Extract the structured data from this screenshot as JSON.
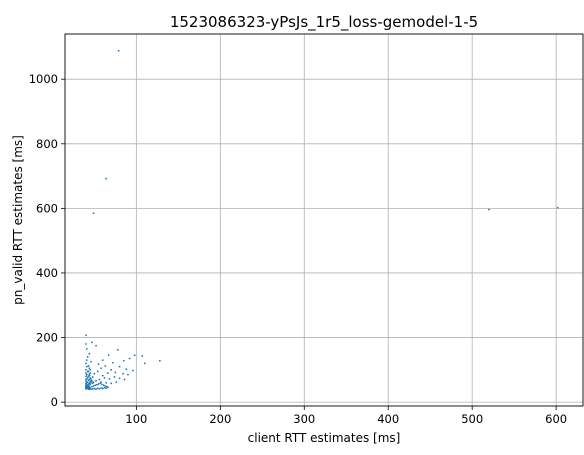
{
  "chart_data": {
    "type": "scatter",
    "title": "1523086323-yPsJs_1r5_loss-gemodel-1-5",
    "xlabel": "client RTT estimates [ms]",
    "ylabel": "pn_valid RTT estimates [ms]",
    "xlim": [
      15,
      632
    ],
    "ylim": [
      -12,
      1140
    ],
    "xticks": [
      100,
      200,
      300,
      400,
      500,
      600
    ],
    "yticks": [
      0,
      200,
      400,
      600,
      800,
      1000
    ],
    "xtick_labels": [
      "100",
      "200",
      "300",
      "400",
      "500",
      "600"
    ],
    "ytick_labels": [
      "0",
      "200",
      "400",
      "600",
      "800",
      "1000"
    ],
    "grid": true,
    "color": "#1f77b4",
    "series": [
      {
        "points": [
          [
            79,
            1088
          ],
          [
            64,
            692
          ],
          [
            49,
            585
          ],
          [
            520,
            596
          ],
          [
            602,
            602
          ],
          [
            40,
            207
          ],
          [
            47,
            185
          ],
          [
            40,
            180
          ],
          [
            52,
            175
          ],
          [
            41,
            165
          ],
          [
            78,
            162
          ],
          [
            67,
            146
          ],
          [
            98,
            145
          ],
          [
            107,
            143
          ],
          [
            128,
            128
          ],
          [
            60,
            130
          ],
          [
            85,
            128
          ],
          [
            110,
            120
          ],
          [
            92,
            135
          ],
          [
            72,
            122
          ],
          [
            55,
            118
          ],
          [
            63,
            112
          ],
          [
            80,
            110
          ],
          [
            88,
            102
          ],
          [
            96,
            98
          ],
          [
            70,
            100
          ],
          [
            58,
            105
          ],
          [
            75,
            92
          ],
          [
            84,
            88
          ],
          [
            90,
            85
          ],
          [
            66,
            90
          ],
          [
            60,
            82
          ],
          [
            54,
            95
          ],
          [
            50,
            88
          ],
          [
            48,
            78
          ],
          [
            62,
            75
          ],
          [
            68,
            72
          ],
          [
            74,
            78
          ],
          [
            80,
            74
          ],
          [
            86,
            70
          ],
          [
            56,
            70
          ],
          [
            52,
            66
          ],
          [
            58,
            62
          ],
          [
            64,
            60
          ],
          [
            70,
            58
          ],
          [
            76,
            62
          ],
          [
            46,
            72
          ],
          [
            44,
            86
          ],
          [
            45,
            100
          ],
          [
            43,
            112
          ],
          [
            46,
            125
          ],
          [
            42,
            140
          ],
          [
            44,
            150
          ],
          [
            41,
            130
          ],
          [
            40,
            120
          ],
          [
            41,
            110
          ],
          [
            40,
            100
          ],
          [
            42,
            95
          ],
          [
            40,
            90
          ],
          [
            41,
            85
          ],
          [
            40,
            80
          ],
          [
            42,
            76
          ],
          [
            41,
            72
          ],
          [
            40,
            70
          ],
          [
            43,
            68
          ],
          [
            40,
            65
          ],
          [
            42,
            62
          ],
          [
            41,
            60
          ],
          [
            40,
            58
          ],
          [
            43,
            56
          ],
          [
            40,
            55
          ],
          [
            42,
            53
          ],
          [
            41,
            52
          ],
          [
            40,
            50
          ],
          [
            43,
            50
          ],
          [
            44,
            49
          ],
          [
            40,
            48
          ],
          [
            42,
            47
          ],
          [
            41,
            46
          ],
          [
            40,
            45
          ],
          [
            43,
            45
          ],
          [
            44,
            44
          ],
          [
            45,
            44
          ],
          [
            40,
            43
          ],
          [
            42,
            43
          ],
          [
            41,
            42
          ],
          [
            40,
            41
          ],
          [
            43,
            41
          ],
          [
            44,
            40
          ],
          [
            46,
            40
          ],
          [
            48,
            41
          ],
          [
            50,
            42
          ],
          [
            52,
            40
          ],
          [
            54,
            43
          ],
          [
            56,
            41
          ],
          [
            58,
            44
          ],
          [
            60,
            42
          ],
          [
            62,
            45
          ],
          [
            64,
            43
          ],
          [
            66,
            46
          ],
          [
            47,
            48
          ],
          [
            49,
            50
          ],
          [
            51,
            52
          ],
          [
            53,
            54
          ],
          [
            55,
            56
          ],
          [
            57,
            58
          ],
          [
            59,
            55
          ],
          [
            61,
            52
          ],
          [
            63,
            50
          ],
          [
            65,
            48
          ],
          [
            45,
            55
          ],
          [
            46,
            60
          ],
          [
            47,
            65
          ],
          [
            48,
            58
          ],
          [
            49,
            62
          ],
          [
            44,
            58
          ],
          [
            45,
            63
          ],
          [
            46,
            67
          ],
          [
            44,
            70
          ],
          [
            45,
            75
          ],
          [
            43,
            80
          ],
          [
            44,
            82
          ],
          [
            45,
            90
          ],
          [
            43,
            95
          ],
          [
            44,
            105
          ]
        ]
      }
    ]
  }
}
